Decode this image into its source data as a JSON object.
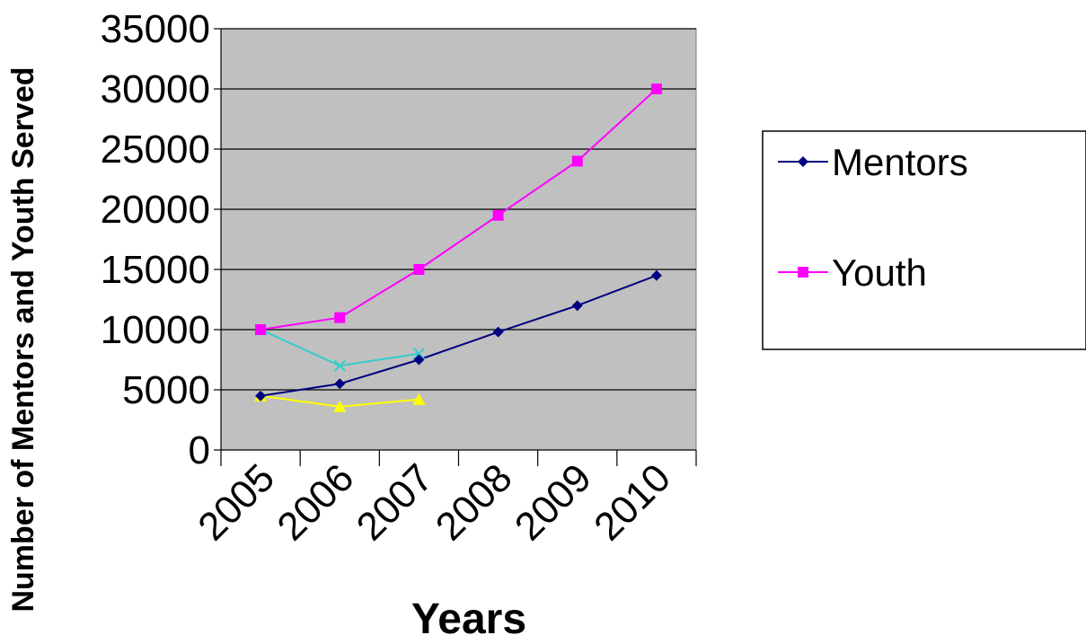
{
  "chart_data": {
    "type": "line",
    "title": "",
    "xlabel": "Years",
    "ylabel": "Number of Mentors and Youth Served",
    "categories": [
      "2005",
      "2006",
      "2007",
      "2008",
      "2009",
      "2010"
    ],
    "ylim": [
      0,
      35000
    ],
    "yticks": [
      0,
      5000,
      10000,
      15000,
      20000,
      25000,
      30000,
      35000
    ],
    "grid": true,
    "plot_background": "#c0c0c0",
    "legend_position": "right",
    "series": [
      {
        "name": "Mentors",
        "color": "#000080",
        "marker": "diamond",
        "values": [
          4500,
          5500,
          7500,
          9800,
          12000,
          14500
        ],
        "in_legend": true
      },
      {
        "name": "Youth",
        "color": "#ff00ff",
        "marker": "square",
        "values": [
          10000,
          11000,
          15000,
          19500,
          24000,
          30000
        ],
        "in_legend": true
      },
      {
        "color": "#33cccc",
        "marker": "x",
        "values": [
          10000,
          7000,
          8000,
          null,
          null,
          null
        ],
        "in_legend": false
      },
      {
        "color": "#ffff00",
        "marker": "triangle",
        "values": [
          4500,
          3600,
          4200,
          null,
          null,
          null
        ],
        "in_legend": false
      }
    ]
  }
}
